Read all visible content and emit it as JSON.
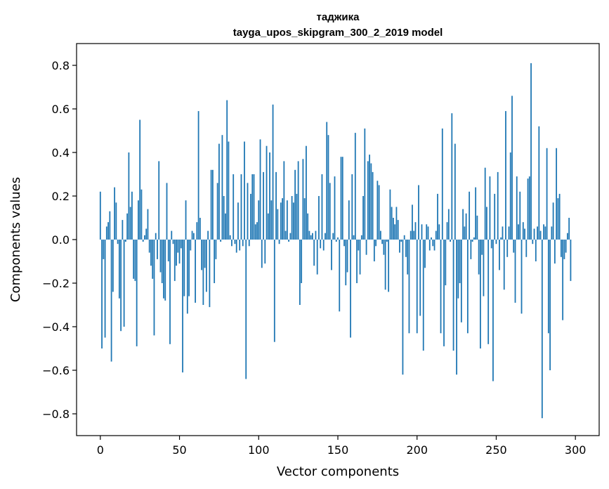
{
  "chart_data": {
    "type": "bar",
    "title": "таджика",
    "subtitle": "tayga_upos_skipgram_300_2_2019 model",
    "xlabel": "Vector components",
    "ylabel": "Components values",
    "xlim": [
      -15,
      315
    ],
    "ylim": [
      -0.9,
      0.9
    ],
    "xticks": [
      0,
      50,
      100,
      150,
      200,
      250,
      300
    ],
    "xtick_labels": [
      "0",
      "50",
      "100",
      "150",
      "200",
      "250",
      "300"
    ],
    "yticks": [
      -0.8,
      -0.6,
      -0.4,
      -0.2,
      0.0,
      0.2,
      0.4,
      0.6,
      0.8
    ],
    "ytick_labels": [
      "−0.8",
      "−0.6",
      "−0.4",
      "−0.2",
      "0.0",
      "0.2",
      "0.4",
      "0.6",
      "0.8"
    ],
    "grid": false,
    "bar_color": "#1f77b4",
    "values": [
      0.22,
      -0.5,
      -0.09,
      -0.45,
      0.06,
      0.08,
      0.13,
      -0.56,
      -0.24,
      0.24,
      0.17,
      -0.02,
      -0.27,
      -0.42,
      0.09,
      -0.4,
      -0.01,
      0.12,
      0.4,
      0.15,
      0.22,
      -0.18,
      -0.19,
      -0.49,
      0.18,
      0.55,
      0.23,
      -0.01,
      0.02,
      0.05,
      0.14,
      -0.06,
      -0.12,
      -0.18,
      -0.44,
      0.03,
      -0.09,
      0.36,
      -0.15,
      -0.2,
      -0.27,
      -0.28,
      0.26,
      -0.1,
      -0.48,
      0.04,
      -0.02,
      -0.19,
      -0.12,
      -0.06,
      -0.11,
      -0.04,
      -0.61,
      -0.26,
      0.18,
      -0.34,
      -0.26,
      -0.05,
      0.04,
      0.03,
      -0.29,
      0.08,
      0.59,
      0.1,
      -0.14,
      -0.3,
      -0.13,
      -0.24,
      0.04,
      -0.31,
      0.32,
      0.32,
      -0.2,
      -0.09,
      0.26,
      0.44,
      -0.01,
      0.48,
      0.2,
      0.12,
      0.64,
      0.45,
      0.02,
      -0.03,
      0.3,
      -0.02,
      -0.06,
      0.17,
      -0.05,
      0.3,
      -0.03,
      0.45,
      -0.64,
      0.26,
      -0.03,
      0.21,
      0.3,
      0.3,
      0.07,
      0.08,
      0.18,
      0.46,
      -0.13,
      0.31,
      -0.11,
      0.43,
      0.12,
      0.4,
      0.18,
      0.62,
      -0.47,
      0.31,
      0.14,
      -0.02,
      0.17,
      0.19,
      0.36,
      0.04,
      0.18,
      -0.01,
      0.03,
      0.2,
      0.17,
      0.32,
      0.21,
      0.36,
      -0.3,
      -0.2,
      0.37,
      0.19,
      0.43,
      0.12,
      0.04,
      0.02,
      0.03,
      -0.12,
      0.04,
      -0.16,
      0.2,
      -0.04,
      0.3,
      -0.05,
      0.03,
      0.54,
      0.48,
      0.26,
      -0.14,
      0.03,
      0.29,
      -0.01,
      0.01,
      -0.33,
      0.38,
      0.38,
      -0.03,
      -0.21,
      -0.15,
      0.18,
      -0.45,
      0.3,
      0.02,
      0.49,
      -0.2,
      -0.05,
      -0.16,
      0.02,
      0.2,
      0.51,
      -0.07,
      0.36,
      0.39,
      0.35,
      0.31,
      -0.1,
      -0.03,
      0.27,
      0.25,
      0.04,
      -0.02,
      -0.07,
      -0.23,
      -0.01,
      -0.24,
      0.23,
      0.15,
      0.1,
      0.07,
      0.15,
      0.09,
      -0.06,
      -0.01,
      -0.62,
      0.02,
      -0.08,
      -0.16,
      -0.43,
      0.04,
      0.16,
      0.04,
      0.08,
      -0.43,
      0.25,
      -0.35,
      0.07,
      -0.51,
      -0.13,
      0.07,
      0.06,
      -0.05,
      0.01,
      -0.03,
      -0.05,
      0.04,
      0.21,
      0.07,
      -0.43,
      0.51,
      -0.49,
      -0.21,
      0.08,
      0.14,
      -0.01,
      0.58,
      -0.51,
      0.44,
      -0.62,
      -0.27,
      -0.2,
      -0.38,
      0.14,
      0.06,
      0.12,
      -0.43,
      0.22,
      -0.09,
      -0.01,
      0.01,
      0.24,
      0.11,
      -0.16,
      -0.5,
      -0.07,
      -0.26,
      0.33,
      0.15,
      -0.48,
      0.29,
      -0.04,
      -0.65,
      0.21,
      -0.02,
      0.31,
      -0.14,
      0.01,
      0.06,
      -0.23,
      0.59,
      -0.08,
      0.06,
      0.4,
      0.66,
      -0.06,
      -0.29,
      0.29,
      0.07,
      0.22,
      -0.34,
      0.08,
      0.05,
      -0.08,
      0.28,
      0.29,
      0.81,
      -0.02,
      0.05,
      -0.1,
      0.06,
      0.52,
      0.04,
      -0.82,
      0.07,
      0.06,
      0.42,
      -0.43,
      -0.6,
      0.06,
      0.17,
      -0.11,
      0.42,
      0.19,
      0.21,
      -0.08,
      -0.37,
      -0.09,
      -0.06,
      0.03,
      0.1,
      -0.19
    ]
  }
}
